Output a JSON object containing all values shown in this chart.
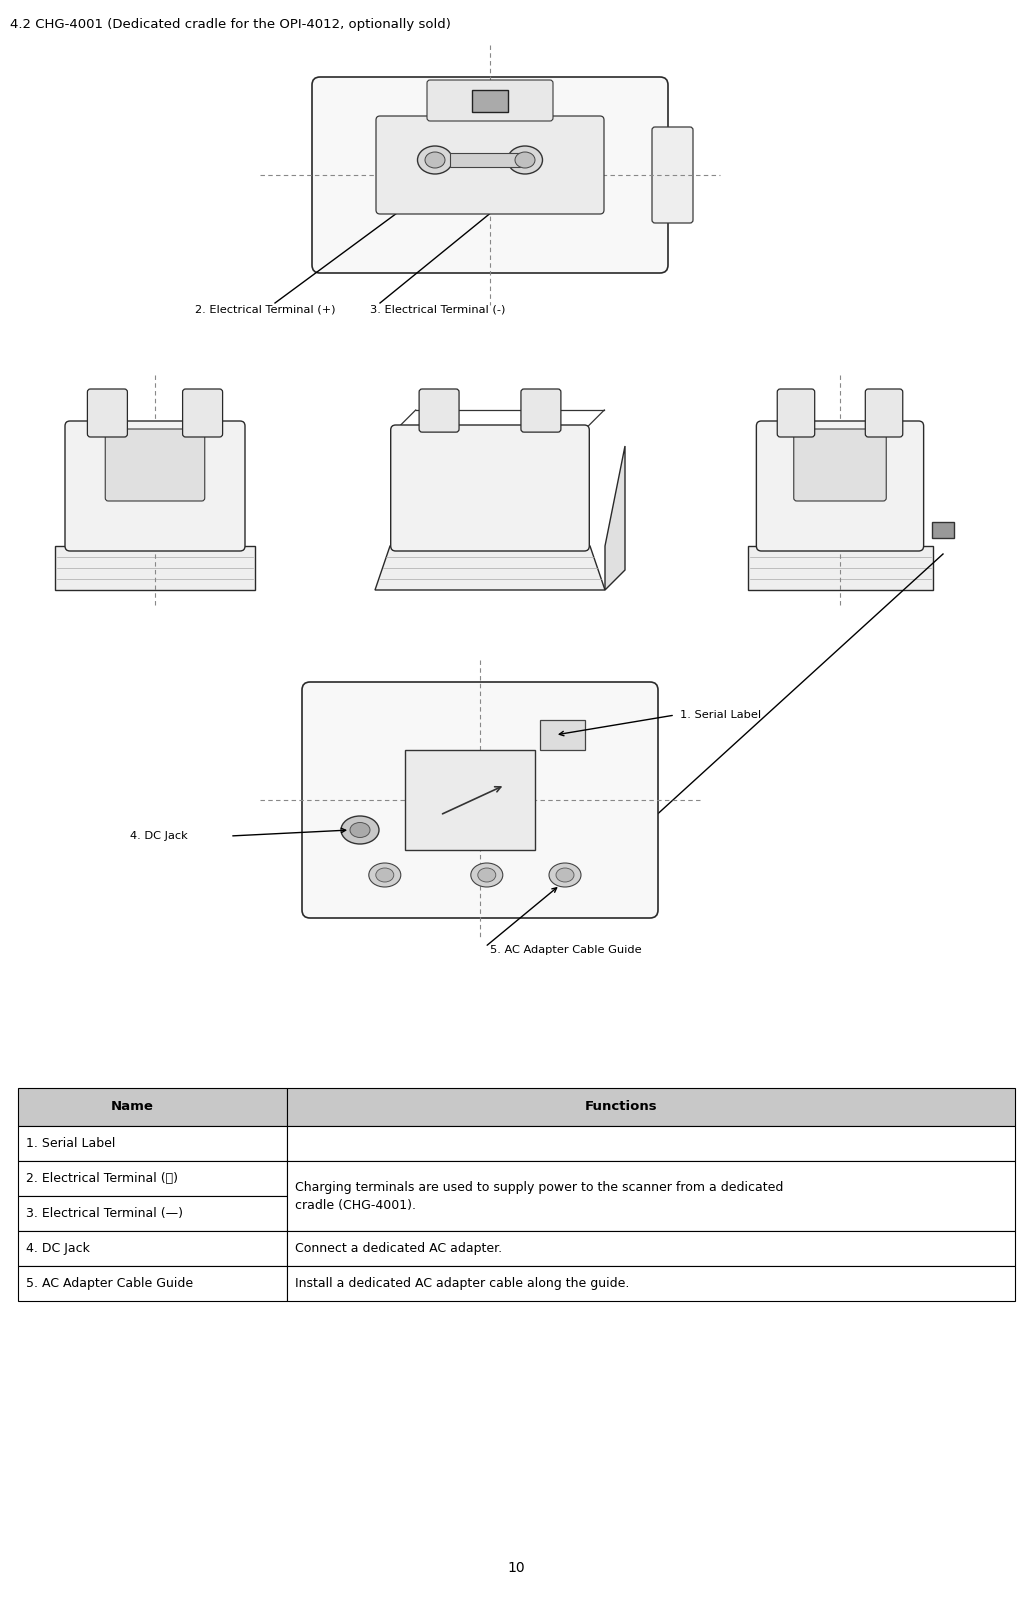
{
  "title": "4.2 CHG-4001 (Dedicated cradle for the OPI-4012, optionally sold)",
  "title_fontsize": 9.5,
  "bg_color": "#ffffff",
  "table_header_bg": "#c8c8c8",
  "table_row_bg": "#ffffff",
  "table_border_color": "#000000",
  "table_col1_header": "Name",
  "table_col2_header": "Functions",
  "table_rows": [
    [
      "1. Serial Label",
      ""
    ],
    [
      "2. Electrical Terminal (＋)",
      "Charging terminals are used to supply power to the scanner from a dedicated\ncradle (CHG-4001)."
    ],
    [
      "3. Electrical Terminal (—)",
      ""
    ],
    [
      "4. DC Jack",
      "Connect a dedicated AC adapter."
    ],
    [
      "5. AC Adapter Cable Guide",
      "Install a dedicated AC adapter cable along the guide."
    ]
  ],
  "page_number": "10",
  "label1": "1. Serial Label",
  "label2": "2. Electrical Terminal (+)",
  "label3": "3. Electrical Terminal (-)",
  "label4": "4. DC Jack",
  "label5": "5. AC Adapter Cable Guide",
  "fig_width": 10.33,
  "fig_height": 16.05,
  "dpi": 100
}
